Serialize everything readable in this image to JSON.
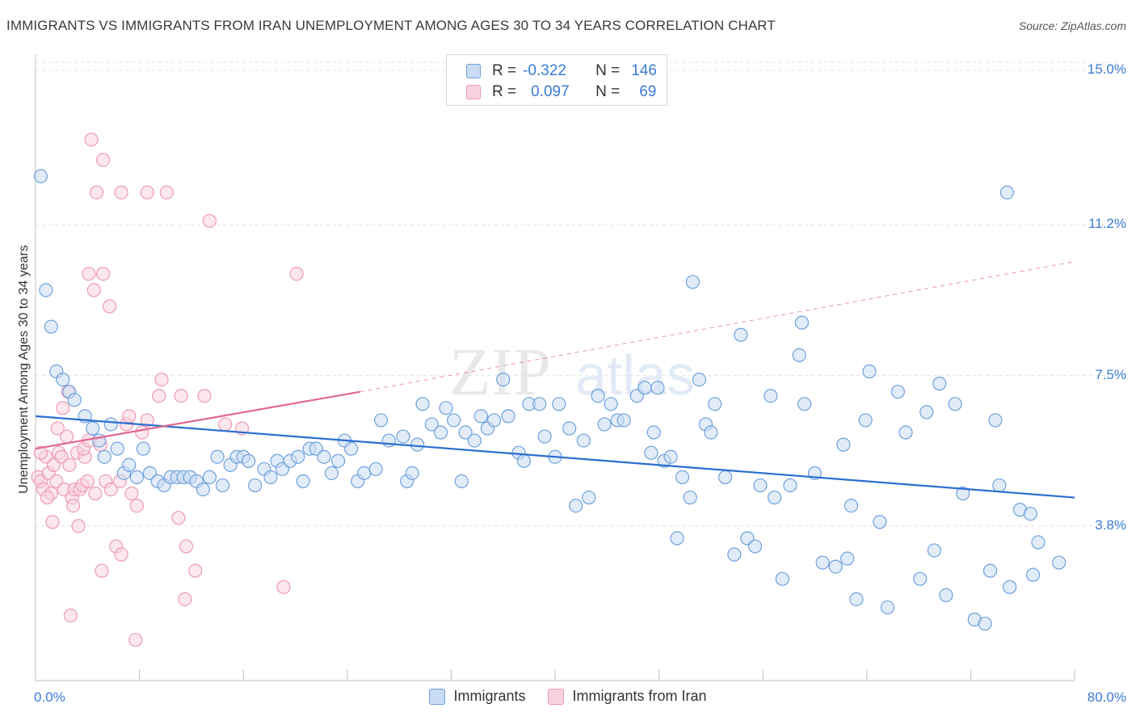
{
  "title": "IMMIGRANTS VS IMMIGRANTS FROM IRAN UNEMPLOYMENT AMONG AGES 30 TO 34 YEARS CORRELATION CHART",
  "source": "Source: ZipAtlas.com",
  "watermark": {
    "zip": "ZIP",
    "atlas": "atlas"
  },
  "colors": {
    "blue_stroke": "#6fa0dc",
    "blue_fill": "#c9dcf3",
    "blue_line": "#2a6fd0",
    "pink_stroke": "#ee9ab4",
    "pink_fill": "#f8d3de",
    "pink_line": "#e06890",
    "accent_text": "#3a7bd5"
  },
  "legend_top": [
    {
      "r_label": "R =",
      "r_value": "-0.322",
      "n_label": "N =",
      "n_value": "146"
    },
    {
      "r_label": "R =",
      "r_value": "0.097",
      "n_label": "N =",
      "n_value": "69"
    }
  ],
  "chart_data": {
    "type": "scatter",
    "title": "IMMIGRANTS VS IMMIGRANTS FROM IRAN UNEMPLOYMENT AMONG AGES 30 TO 34 YEARS CORRELATION CHART",
    "xlabel": "",
    "ylabel": "Unemployment Among Ages 30 to 34 years",
    "xlim": [
      0,
      80
    ],
    "ylim": [
      0,
      15.4
    ],
    "x_tick_labels": [
      "0.0%",
      "80.0%"
    ],
    "y_tick_labels": [
      "15.0%",
      "11.2%",
      "7.5%",
      "3.8%"
    ],
    "y_tick_values": [
      15.0,
      11.2,
      7.5,
      3.8
    ],
    "grid": "horizontal dashed",
    "legend_placement": "bottom",
    "series": [
      {
        "name": "Immigrants",
        "color": "blue",
        "trend": {
          "x0": 0,
          "y0": 6.5,
          "x1": 80,
          "y1": 4.5
        },
        "points": [
          [
            0.4,
            12.4
          ],
          [
            0.8,
            9.6
          ],
          [
            1.2,
            8.7
          ],
          [
            1.6,
            7.6
          ],
          [
            2.1,
            7.4
          ],
          [
            2.6,
            7.1
          ],
          [
            3.0,
            6.9
          ],
          [
            3.8,
            6.5
          ],
          [
            4.4,
            6.2
          ],
          [
            4.9,
            5.9
          ],
          [
            5.3,
            5.5
          ],
          [
            5.8,
            6.3
          ],
          [
            6.3,
            5.7
          ],
          [
            6.8,
            5.1
          ],
          [
            7.2,
            5.3
          ],
          [
            7.8,
            5.0
          ],
          [
            8.3,
            5.7
          ],
          [
            8.8,
            5.1
          ],
          [
            9.4,
            4.9
          ],
          [
            9.9,
            4.8
          ],
          [
            10.4,
            5.0
          ],
          [
            10.9,
            5.0
          ],
          [
            11.4,
            5.0
          ],
          [
            11.9,
            5.0
          ],
          [
            12.4,
            4.9
          ],
          [
            12.9,
            4.7
          ],
          [
            13.4,
            5.0
          ],
          [
            14.0,
            5.5
          ],
          [
            14.4,
            4.8
          ],
          [
            15.0,
            5.3
          ],
          [
            15.5,
            5.5
          ],
          [
            16.0,
            5.5
          ],
          [
            16.4,
            5.4
          ],
          [
            16.9,
            4.8
          ],
          [
            17.6,
            5.2
          ],
          [
            18.1,
            5.0
          ],
          [
            18.6,
            5.4
          ],
          [
            19.0,
            5.2
          ],
          [
            19.6,
            5.4
          ],
          [
            20.2,
            5.5
          ],
          [
            20.6,
            4.9
          ],
          [
            21.1,
            5.7
          ],
          [
            21.6,
            5.7
          ],
          [
            22.2,
            5.5
          ],
          [
            22.8,
            5.1
          ],
          [
            23.3,
            5.4
          ],
          [
            23.8,
            5.9
          ],
          [
            24.3,
            5.7
          ],
          [
            24.8,
            4.9
          ],
          [
            25.3,
            5.1
          ],
          [
            26.2,
            5.2
          ],
          [
            26.6,
            6.4
          ],
          [
            27.2,
            5.9
          ],
          [
            28.3,
            6.0
          ],
          [
            28.6,
            4.9
          ],
          [
            29.0,
            5.1
          ],
          [
            29.4,
            5.8
          ],
          [
            29.8,
            6.8
          ],
          [
            30.5,
            6.3
          ],
          [
            31.2,
            6.1
          ],
          [
            31.6,
            6.7
          ],
          [
            32.2,
            6.4
          ],
          [
            32.8,
            4.9
          ],
          [
            33.1,
            6.1
          ],
          [
            33.8,
            5.9
          ],
          [
            34.3,
            6.5
          ],
          [
            34.8,
            6.2
          ],
          [
            35.3,
            6.4
          ],
          [
            36.0,
            7.4
          ],
          [
            36.4,
            6.5
          ],
          [
            37.2,
            5.6
          ],
          [
            37.6,
            5.4
          ],
          [
            38.0,
            6.8
          ],
          [
            38.8,
            6.8
          ],
          [
            39.2,
            6.0
          ],
          [
            40.0,
            5.5
          ],
          [
            40.3,
            6.8
          ],
          [
            41.1,
            6.2
          ],
          [
            41.6,
            4.3
          ],
          [
            42.2,
            5.9
          ],
          [
            42.6,
            4.5
          ],
          [
            43.3,
            7.0
          ],
          [
            43.8,
            6.3
          ],
          [
            44.3,
            6.8
          ],
          [
            44.8,
            6.4
          ],
          [
            45.3,
            6.4
          ],
          [
            46.3,
            7.0
          ],
          [
            46.9,
            7.2
          ],
          [
            47.4,
            5.6
          ],
          [
            47.6,
            6.1
          ],
          [
            47.9,
            7.2
          ],
          [
            48.4,
            5.4
          ],
          [
            48.9,
            5.5
          ],
          [
            49.4,
            3.5
          ],
          [
            49.8,
            5.0
          ],
          [
            50.4,
            4.5
          ],
          [
            51.1,
            7.4
          ],
          [
            51.6,
            6.3
          ],
          [
            52.0,
            6.1
          ],
          [
            52.3,
            6.8
          ],
          [
            53.1,
            5.0
          ],
          [
            53.8,
            3.1
          ],
          [
            54.3,
            8.5
          ],
          [
            54.8,
            3.5
          ],
          [
            55.4,
            3.3
          ],
          [
            55.8,
            4.8
          ],
          [
            56.6,
            7.0
          ],
          [
            56.9,
            4.5
          ],
          [
            57.5,
            2.5
          ],
          [
            58.1,
            4.8
          ],
          [
            58.8,
            8.0
          ],
          [
            59.2,
            6.8
          ],
          [
            60.0,
            5.1
          ],
          [
            60.6,
            2.9
          ],
          [
            61.6,
            2.8
          ],
          [
            62.2,
            5.8
          ],
          [
            62.8,
            4.3
          ],
          [
            63.2,
            2.0
          ],
          [
            63.9,
            6.4
          ],
          [
            64.2,
            7.6
          ],
          [
            65.0,
            3.9
          ],
          [
            65.6,
            1.8
          ],
          [
            66.4,
            7.1
          ],
          [
            67.0,
            6.1
          ],
          [
            68.1,
            2.5
          ],
          [
            68.6,
            6.6
          ],
          [
            69.2,
            3.2
          ],
          [
            69.6,
            7.3
          ],
          [
            70.1,
            2.1
          ],
          [
            70.8,
            6.8
          ],
          [
            72.3,
            1.5
          ],
          [
            73.1,
            1.4
          ],
          [
            73.5,
            2.7
          ],
          [
            73.9,
            6.4
          ],
          [
            74.2,
            4.8
          ],
          [
            75.0,
            2.3
          ],
          [
            75.8,
            4.2
          ],
          [
            76.6,
            4.1
          ],
          [
            76.8,
            2.6
          ],
          [
            77.2,
            3.4
          ],
          [
            78.8,
            2.9
          ],
          [
            74.8,
            12.0
          ],
          [
            50.6,
            9.8
          ],
          [
            59.0,
            8.8
          ],
          [
            62.5,
            3.0
          ],
          [
            71.4,
            4.6
          ]
        ]
      },
      {
        "name": "Immigrants from Iran",
        "color": "pink",
        "trend": {
          "x0": 0,
          "y0": 5.7,
          "x1": 25,
          "y1": 7.1,
          "dash_x1": 80,
          "dash_y1": 10.3
        },
        "points": [
          [
            0.2,
            5.0
          ],
          [
            0.4,
            4.9
          ],
          [
            0.6,
            4.7
          ],
          [
            0.8,
            5.5
          ],
          [
            1.0,
            5.1
          ],
          [
            1.2,
            4.6
          ],
          [
            1.4,
            5.3
          ],
          [
            1.6,
            4.9
          ],
          [
            1.8,
            5.6
          ],
          [
            2.0,
            5.5
          ],
          [
            2.2,
            4.7
          ],
          [
            2.4,
            6.0
          ],
          [
            2.6,
            5.3
          ],
          [
            2.8,
            4.5
          ],
          [
            3.0,
            4.7
          ],
          [
            3.2,
            5.6
          ],
          [
            3.4,
            4.7
          ],
          [
            3.6,
            4.8
          ],
          [
            3.8,
            5.5
          ],
          [
            4.0,
            4.9
          ],
          [
            0.4,
            5.6
          ],
          [
            0.9,
            4.5
          ],
          [
            1.3,
            3.9
          ],
          [
            1.7,
            6.2
          ],
          [
            2.1,
            6.7
          ],
          [
            2.5,
            7.1
          ],
          [
            2.9,
            4.3
          ],
          [
            3.3,
            3.8
          ],
          [
            3.7,
            5.7
          ],
          [
            4.1,
            5.9
          ],
          [
            4.6,
            4.6
          ],
          [
            5.0,
            5.8
          ],
          [
            5.4,
            4.9
          ],
          [
            5.8,
            4.7
          ],
          [
            6.2,
            3.3
          ],
          [
            6.6,
            3.1
          ],
          [
            7.0,
            6.3
          ],
          [
            7.4,
            4.6
          ],
          [
            7.8,
            4.3
          ],
          [
            8.2,
            6.1
          ],
          [
            4.3,
            13.3
          ],
          [
            5.2,
            12.8
          ],
          [
            4.7,
            12.0
          ],
          [
            6.6,
            12.0
          ],
          [
            8.6,
            12.0
          ],
          [
            10.1,
            12.0
          ],
          [
            13.4,
            11.3
          ],
          [
            4.1,
            10.0
          ],
          [
            5.2,
            10.0
          ],
          [
            4.5,
            9.6
          ],
          [
            5.7,
            9.2
          ],
          [
            9.7,
            7.4
          ],
          [
            9.5,
            7.0
          ],
          [
            11.2,
            7.0
          ],
          [
            13.0,
            7.0
          ],
          [
            11.0,
            4.0
          ],
          [
            11.6,
            3.3
          ],
          [
            12.3,
            2.7
          ],
          [
            5.1,
            2.7
          ],
          [
            6.5,
            4.9
          ],
          [
            7.2,
            6.5
          ],
          [
            8.6,
            6.4
          ],
          [
            11.5,
            2.0
          ],
          [
            7.7,
            1.0
          ],
          [
            2.7,
            1.6
          ],
          [
            14.6,
            6.3
          ],
          [
            15.9,
            6.2
          ],
          [
            19.1,
            2.3
          ],
          [
            20.1,
            10.0
          ]
        ]
      }
    ]
  },
  "legend_bottom": [
    "Immigrants",
    "Immigrants from Iran"
  ]
}
